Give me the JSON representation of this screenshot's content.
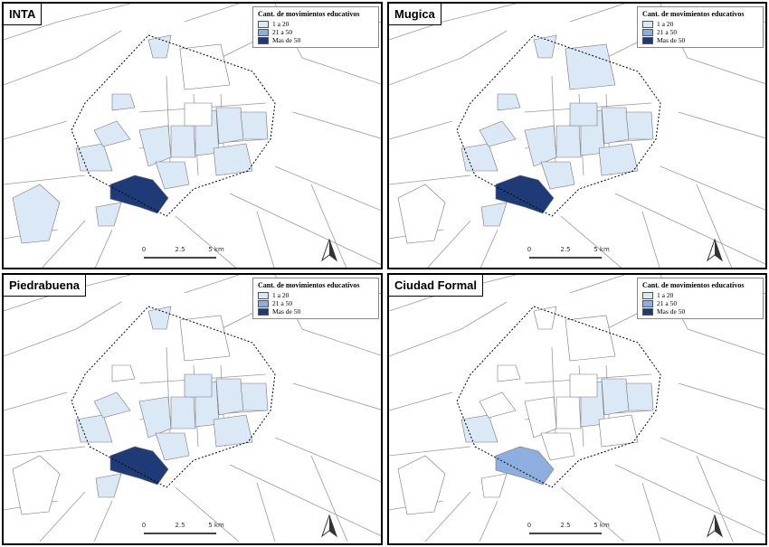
{
  "panels": [
    {
      "title": "INTA",
      "legend": {
        "title": "Cant. de movimientos educativos",
        "items": [
          {
            "label": "1 a 20",
            "color": "#dbe8f6"
          },
          {
            "label": "21 a 50",
            "color": "#8eaee0"
          },
          {
            "label": "Mas de 50",
            "color": "#1f3b77"
          }
        ]
      },
      "scale": [
        "0",
        "2.5",
        "5 km"
      ]
    },
    {
      "title": "Mugica",
      "legend": {
        "title": "Cant. de movimientos educativos",
        "items": [
          {
            "label": "1 a 20",
            "color": "#dbe8f6"
          },
          {
            "label": "21 a 50",
            "color": "#8eaee0"
          },
          {
            "label": "Mas de 50",
            "color": "#1f3b77"
          }
        ]
      },
      "scale": [
        "0",
        "2.5",
        "5 km"
      ]
    },
    {
      "title": "Piedrabuena",
      "legend": {
        "title": "Cant. de movimientos educativos",
        "items": [
          {
            "label": "1 a 20",
            "color": "#dbe8f6"
          },
          {
            "label": "21 a 50",
            "color": "#8eaee0"
          },
          {
            "label": "Mas de 50",
            "color": "#1f3b77"
          }
        ]
      },
      "scale": [
        "0",
        "2.5",
        "5 km"
      ]
    },
    {
      "title": "Ciudad Formal",
      "legend": {
        "title": "Cant. de movimientos educativos",
        "items": [
          {
            "label": "1 a 20",
            "color": "#dbe8f6"
          },
          {
            "label": "21 a 50",
            "color": "#8eaee0"
          },
          {
            "label": "Mas de 50",
            "color": "#1f3b77"
          }
        ]
      },
      "scale": [
        "0",
        "2.5",
        "5 km"
      ]
    }
  ]
}
